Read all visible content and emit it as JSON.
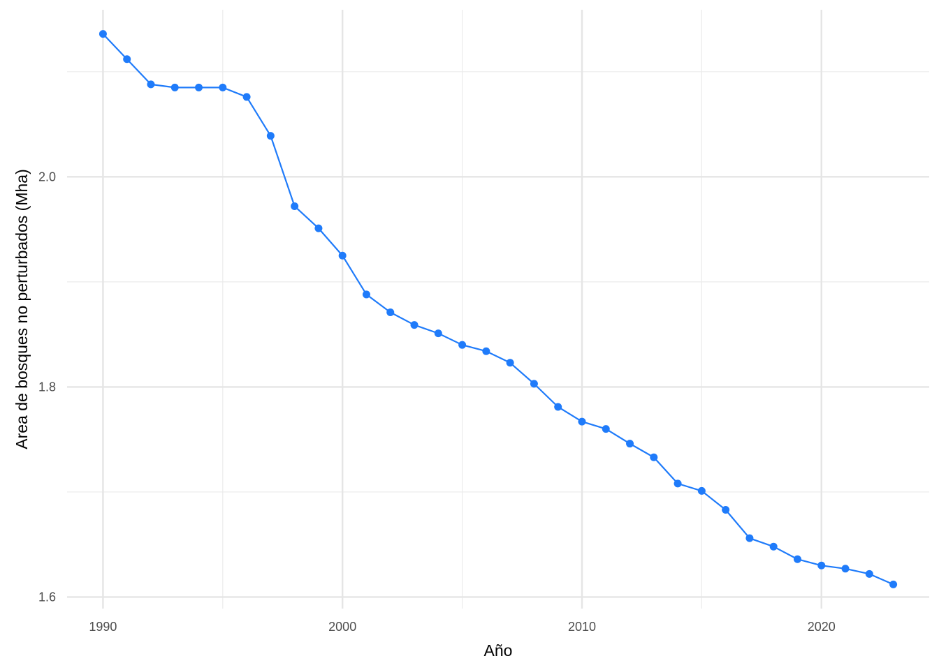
{
  "chart_data": {
    "type": "line",
    "title": "",
    "xlabel": "Año",
    "ylabel": "Area de bosques no perturbados (Mha)",
    "xlim": [
      1988.5,
      2024.5
    ],
    "ylim": [
      1.589,
      2.159
    ],
    "x_ticks": [
      1990,
      2000,
      2010,
      2020
    ],
    "x_tick_labels": [
      "1990",
      "2000",
      "2010",
      "2020"
    ],
    "y_ticks": [
      1.6,
      1.8,
      2.0
    ],
    "y_tick_labels": [
      "1.6",
      "1.8",
      "2.0"
    ],
    "x_minor_ticks": [
      1995,
      2005,
      2015
    ],
    "y_minor_ticks": [
      1.7,
      1.9,
      2.1
    ],
    "grid": true,
    "legend": "none",
    "series": [
      {
        "color": "#1f7bfa",
        "x": [
          1990,
          1991,
          1992,
          1993,
          1994,
          1995,
          1996,
          1997,
          1998,
          1999,
          2000,
          2001,
          2002,
          2003,
          2004,
          2005,
          2006,
          2007,
          2008,
          2009,
          2010,
          2011,
          2012,
          2013,
          2014,
          2015,
          2016,
          2017,
          2018,
          2019,
          2020,
          2021,
          2022,
          2023
        ],
        "values": [
          2.136,
          2.112,
          2.088,
          2.085,
          2.085,
          2.085,
          2.076,
          2.039,
          1.972,
          1.951,
          1.925,
          1.888,
          1.871,
          1.859,
          1.851,
          1.84,
          1.834,
          1.823,
          1.803,
          1.781,
          1.767,
          1.76,
          1.746,
          1.733,
          1.708,
          1.701,
          1.683,
          1.656,
          1.648,
          1.636,
          1.63,
          1.627,
          1.622,
          1.612
        ]
      }
    ]
  }
}
